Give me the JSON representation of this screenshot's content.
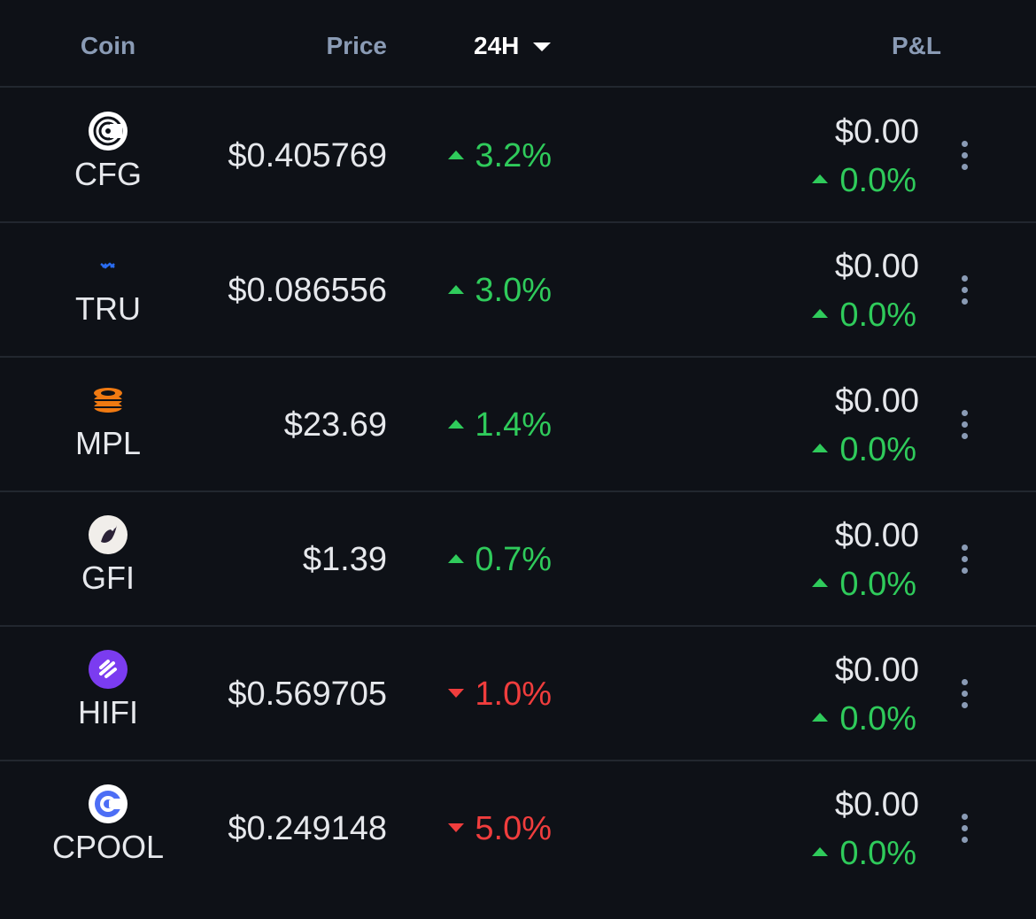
{
  "header": {
    "coin": "Coin",
    "price": "Price",
    "change": "24H",
    "pnl": "P&L"
  },
  "rows": [
    {
      "coin": "CFG",
      "price": "$0.405769",
      "change": "3.2%",
      "trend": "up",
      "pnl_value": "$0.00",
      "pnl_change": "0.0%",
      "pnl_trend": "up"
    },
    {
      "coin": "TRU",
      "price": "$0.086556",
      "change": "3.0%",
      "trend": "up",
      "pnl_value": "$0.00",
      "pnl_change": "0.0%",
      "pnl_trend": "up"
    },
    {
      "coin": "MPL",
      "price": "$23.69",
      "change": "1.4%",
      "trend": "up",
      "pnl_value": "$0.00",
      "pnl_change": "0.0%",
      "pnl_trend": "up"
    },
    {
      "coin": "GFI",
      "price": "$1.39",
      "change": "0.7%",
      "trend": "up",
      "pnl_value": "$0.00",
      "pnl_change": "0.0%",
      "pnl_trend": "up"
    },
    {
      "coin": "HIFI",
      "price": "$0.569705",
      "change": "1.0%",
      "trend": "down",
      "pnl_value": "$0.00",
      "pnl_change": "0.0%",
      "pnl_trend": "up"
    },
    {
      "coin": "CPOOL",
      "price": "$0.249148",
      "change": "5.0%",
      "trend": "down",
      "pnl_value": "$0.00",
      "pnl_change": "0.0%",
      "pnl_trend": "up"
    }
  ]
}
